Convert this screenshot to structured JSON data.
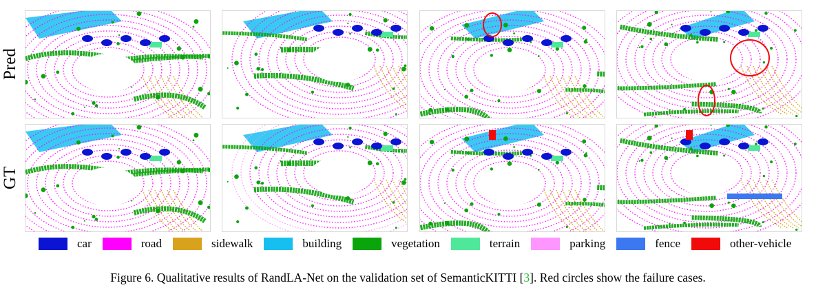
{
  "figure": {
    "row_labels": [
      "Pred",
      "GT"
    ],
    "legend": [
      {
        "name": "car",
        "color": "#0a14d2"
      },
      {
        "name": "road",
        "color": "#ff00ff"
      },
      {
        "name": "sidewalk",
        "color": "#d9a21c"
      },
      {
        "name": "building",
        "color": "#17bff0"
      },
      {
        "name": "vegetation",
        "color": "#0aa50a"
      },
      {
        "name": "terrain",
        "color": "#4fe89a"
      },
      {
        "name": "parking",
        "color": "#ff96ff"
      },
      {
        "name": "fence",
        "color": "#3c78f0"
      },
      {
        "name": "other-vehicle",
        "color": "#f00a0a"
      }
    ],
    "caption": {
      "prefix": "Figure 6. Qualitative results of RandLA-Net on the validation set of SemanticKITTI [",
      "citation": "3",
      "suffix": "]. Red circles show the failure cases."
    }
  }
}
